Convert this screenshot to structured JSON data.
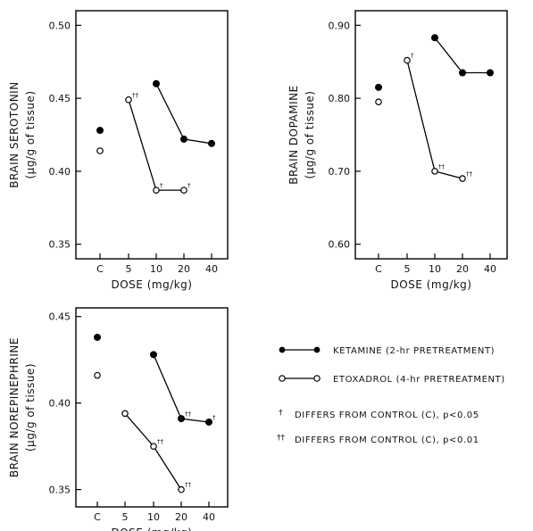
{
  "chart_data": [
    {
      "type": "line",
      "ylabel": "BRAIN SEROTONIN",
      "yunit": "(µg/g of tissue)",
      "xlabel": "DOSE (mg/kg)",
      "categories": [
        "C",
        "5",
        "10",
        "20",
        "40"
      ],
      "yticks": [
        "0.35",
        "0.40",
        "0.45",
        "0.50"
      ],
      "ylim": [
        0.34,
        0.51
      ],
      "series": [
        {
          "key": "ketamine",
          "values": [
            0.428,
            null,
            0.46,
            0.422,
            0.419
          ],
          "sig": [
            "",
            "",
            "",
            "",
            ""
          ]
        },
        {
          "key": "etoxadrol",
          "values": [
            0.414,
            0.449,
            0.387,
            0.387,
            null
          ],
          "sig": [
            "",
            "††",
            "†",
            "†",
            ""
          ]
        }
      ]
    },
    {
      "type": "line",
      "ylabel": "BRAIN DOPAMINE",
      "yunit": "(µg/g of tissue)",
      "xlabel": "DOSE (mg/kg)",
      "categories": [
        "C",
        "5",
        "10",
        "20",
        "40"
      ],
      "yticks": [
        "0.60",
        "0.70",
        "0.80",
        "0.90"
      ],
      "ylim": [
        0.58,
        0.92
      ],
      "series": [
        {
          "key": "ketamine",
          "values": [
            0.815,
            null,
            0.883,
            0.835,
            0.835
          ],
          "sig": [
            "",
            "",
            "",
            "",
            ""
          ]
        },
        {
          "key": "etoxadrol",
          "values": [
            0.795,
            0.852,
            0.7,
            0.69,
            null
          ],
          "sig": [
            "",
            "†",
            "††",
            "††",
            ""
          ]
        }
      ]
    },
    {
      "type": "line",
      "ylabel": "BRAIN NOREPINEPHRINE",
      "yunit": "(µg/g of tissue)",
      "xlabel": "DOSE (mg/kg)",
      "categories": [
        "C",
        "5",
        "10",
        "20",
        "40"
      ],
      "yticks": [
        "0.35",
        "0.40",
        "0.45"
      ],
      "ylim": [
        0.34,
        0.455
      ],
      "series": [
        {
          "key": "ketamine",
          "values": [
            0.438,
            null,
            0.428,
            0.391,
            0.389
          ],
          "sig": [
            "",
            "",
            "",
            "††",
            "†"
          ]
        },
        {
          "key": "etoxadrol",
          "values": [
            0.416,
            0.394,
            0.375,
            0.35,
            null
          ],
          "sig": [
            "",
            "",
            "††",
            "††",
            ""
          ]
        }
      ]
    }
  ],
  "legend": {
    "ketamine": "KETAMINE (2-hr PRETREATMENT)",
    "etoxadrol": "ETOXADROL (4-hr PRETREATMENT)",
    "sig1_symbol": "†",
    "sig1_text": "DIFFERS FROM CONTROL (C), p<0.05",
    "sig2_symbol": "††",
    "sig2_text": "DIFFERS FROM CONTROL (C), p<0.01"
  }
}
